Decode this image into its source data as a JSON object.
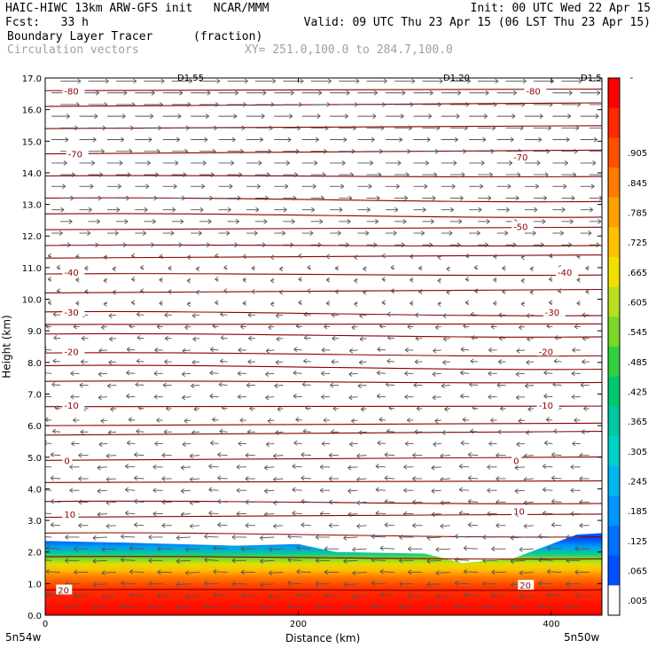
{
  "header": {
    "line1_left": "HAIC-HIWC 13km ARW-GFS init   NCAR/MMM",
    "line1_right": "Init: 00 UTC Wed 22 Apr 15",
    "line2_left": "Fcst:   33 h",
    "line2_right": "Valid: 09 UTC Thu 23 Apr 15 (06 LST Thu 23 Apr 15)",
    "field_name": "Boundary Layer Tracer",
    "field_units": "(fraction)",
    "overlay_name": "Circulation vectors",
    "xsec_coords": "XY= 251.0,100.0 to 284.7,100.0"
  },
  "axes": {
    "xlabel": "Distance (km)",
    "ylabel": "Height (km)",
    "x_left_end": "5n54w",
    "x_right_end": "5n50w",
    "colorbar_top_label": "-"
  },
  "chart_data": {
    "type": "heatmap",
    "description_fields": [
      "Boundary layer tracer fraction (filled)",
      "Temperature contours (C)",
      "Circulation vectors"
    ],
    "xlim": [
      0,
      440
    ],
    "ylim": [
      0.0,
      17.0
    ],
    "x_ticks": [
      "0",
      "200",
      "400"
    ],
    "x_tick_values": [
      0,
      200,
      400
    ],
    "y_ticks": [
      "0.0",
      "1.0",
      "2.0",
      "3.0",
      "4.0",
      "5.0",
      "6.0",
      "7.0",
      "8.0",
      "9.0",
      "10.0",
      "11.0",
      "12.0",
      "13.0",
      "14.0",
      "15.0",
      "16.0",
      "17.0"
    ],
    "colorbar_labels": [
      ".005",
      ".065",
      ".125",
      ".185",
      ".245",
      ".305",
      ".365",
      ".425",
      ".485",
      ".545",
      ".605",
      ".665",
      ".725",
      ".785",
      ".845",
      ".905"
    ],
    "colorbar_colors": [
      "#ffffff",
      "#0050ff",
      "#0070ff",
      "#0095ff",
      "#00b8f0",
      "#00d0c8",
      "#00c8a0",
      "#00c870",
      "#30d040",
      "#7ad82a",
      "#b8e020",
      "#f0e000",
      "#ffc000",
      "#ffa000",
      "#ff7a00",
      "#ff5000",
      "#ff2800",
      "#ff0000"
    ],
    "boundary_layer_top_km": [
      {
        "x": 0,
        "y": 2.35
      },
      {
        "x": 60,
        "y": 2.3
      },
      {
        "x": 150,
        "y": 2.2
      },
      {
        "x": 200,
        "y": 2.25
      },
      {
        "x": 230,
        "y": 2.0
      },
      {
        "x": 300,
        "y": 1.95
      },
      {
        "x": 330,
        "y": 1.65
      },
      {
        "x": 370,
        "y": 1.8
      },
      {
        "x": 420,
        "y": 2.55
      },
      {
        "x": 440,
        "y": 2.6
      }
    ],
    "temperature_contours": [
      {
        "label": "20",
        "y_km": 0.8,
        "label_positions": [
          {
            "x": 10,
            "y": 0.8
          },
          {
            "x": 375,
            "y": 0.95
          }
        ]
      },
      {
        "label": "10",
        "y_km": 3.1,
        "label_positions": [
          {
            "x": 15,
            "y": 3.2
          },
          {
            "x": 370,
            "y": 3.3
          }
        ]
      },
      {
        "label": "0",
        "y_km": 4.9,
        "label_positions": [
          {
            "x": 15,
            "y": 4.9
          },
          {
            "x": 370,
            "y": 4.9
          }
        ]
      },
      {
        "label": "-10",
        "y_km": 6.6,
        "label_positions": [
          {
            "x": 15,
            "y": 6.65
          },
          {
            "x": 390,
            "y": 6.65
          }
        ]
      },
      {
        "label": "-20",
        "y_km": 8.3,
        "label_positions": [
          {
            "x": 15,
            "y": 8.35
          },
          {
            "x": 390,
            "y": 8.35
          }
        ]
      },
      {
        "label": "-30",
        "y_km": 9.6,
        "label_positions": [
          {
            "x": 15,
            "y": 9.6
          },
          {
            "x": 395,
            "y": 9.6
          }
        ]
      },
      {
        "label": "-40",
        "y_km": 10.8,
        "label_positions": [
          {
            "x": 15,
            "y": 10.85
          },
          {
            "x": 405,
            "y": 10.85
          }
        ]
      },
      {
        "label": "-50",
        "y_km": 12.2,
        "label_positions": [
          {
            "x": 370,
            "y": 12.3
          }
        ]
      },
      {
        "label": "-70",
        "y_km": 14.6,
        "label_positions": [
          {
            "x": 18,
            "y": 14.6
          },
          {
            "x": 370,
            "y": 14.5
          }
        ]
      },
      {
        "label": "-80",
        "y_km": 16.6,
        "label_positions": [
          {
            "x": 15,
            "y": 16.6
          },
          {
            "x": 380,
            "y": 16.6
          }
        ]
      }
    ],
    "extra_isotherm_heights_km": [
      1.85,
      2.6,
      3.6,
      4.2,
      5.7,
      6.0,
      7.4,
      7.9,
      8.9,
      9.2,
      10.2,
      11.3,
      11.7,
      12.7,
      13.2,
      13.9,
      15.4,
      16.1
    ],
    "vectors": {
      "upper_direction": "eastward",
      "upper_levels_km": [
        11.5,
        17.0
      ],
      "lower_direction": "westward",
      "lower_levels_km": [
        0.0,
        10.5
      ]
    },
    "cross_section_markers": [
      "D1.55",
      "D1.20",
      "D1.5"
    ]
  }
}
